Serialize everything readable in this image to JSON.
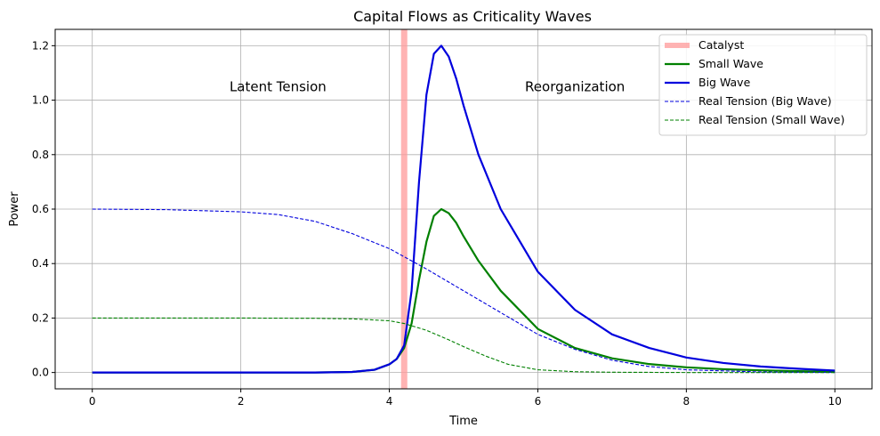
{
  "chart_data": {
    "type": "line",
    "title": "Capital Flows as Criticality Waves",
    "xlabel": "Time",
    "ylabel": "Power",
    "xlim": [
      -0.5,
      10.5
    ],
    "ylim": [
      -0.06,
      1.26
    ],
    "xticks": [
      0,
      2,
      4,
      6,
      8,
      10
    ],
    "xtick_labels": [
      "0",
      "2",
      "4",
      "6",
      "8",
      "10"
    ],
    "yticks": [
      0.0,
      0.2,
      0.4,
      0.6,
      0.8,
      1.0,
      1.2
    ],
    "ytick_labels": [
      "0.0",
      "0.2",
      "0.4",
      "0.6",
      "0.8",
      "1.0",
      "1.2"
    ],
    "grid": true,
    "legend_position": "top-right",
    "catalyst": {
      "name": "Catalyst",
      "x": 4.2,
      "color": "#ff9999"
    },
    "annotations": [
      {
        "text": "Latent Tension",
        "x": 2.5,
        "y": 1.05
      },
      {
        "text": "Reorganization",
        "x": 6.5,
        "y": 1.05
      }
    ],
    "series": [
      {
        "name": "Small Wave",
        "color": "#008000",
        "style": "solid",
        "x": [
          0,
          1,
          2,
          3,
          3.5,
          3.8,
          4.0,
          4.1,
          4.2,
          4.3,
          4.4,
          4.5,
          4.6,
          4.7,
          4.8,
          4.9,
          5.0,
          5.2,
          5.5,
          6.0,
          6.5,
          7.0,
          7.5,
          8.0,
          8.5,
          9.0,
          9.5,
          10.0
        ],
        "values": [
          0.0,
          0.0,
          0.0,
          0.0,
          0.002,
          0.01,
          0.03,
          0.05,
          0.09,
          0.18,
          0.34,
          0.48,
          0.575,
          0.6,
          0.585,
          0.55,
          0.5,
          0.41,
          0.3,
          0.16,
          0.09,
          0.052,
          0.031,
          0.019,
          0.012,
          0.008,
          0.005,
          0.003
        ]
      },
      {
        "name": "Big Wave",
        "color": "#0000dd",
        "style": "solid",
        "x": [
          0,
          1,
          2,
          3,
          3.5,
          3.8,
          4.0,
          4.1,
          4.2,
          4.3,
          4.4,
          4.5,
          4.6,
          4.7,
          4.8,
          4.9,
          5.0,
          5.2,
          5.5,
          6.0,
          6.5,
          7.0,
          7.5,
          8.0,
          8.5,
          9.0,
          9.5,
          10.0
        ],
        "values": [
          0.0,
          0.0,
          0.0,
          0.0,
          0.002,
          0.01,
          0.03,
          0.05,
          0.1,
          0.3,
          0.7,
          1.02,
          1.17,
          1.2,
          1.16,
          1.08,
          0.98,
          0.8,
          0.6,
          0.37,
          0.23,
          0.14,
          0.09,
          0.055,
          0.035,
          0.022,
          0.014,
          0.007
        ]
      },
      {
        "name": "Real Tension (Big Wave)",
        "color": "#0000dd",
        "style": "dashed",
        "x": [
          0,
          1,
          2,
          2.5,
          3,
          3.5,
          4.0,
          4.2,
          4.5,
          5.0,
          5.5,
          6.0,
          6.5,
          7.0,
          7.5,
          8.0,
          9.0,
          10.0
        ],
        "values": [
          0.6,
          0.598,
          0.59,
          0.58,
          0.555,
          0.51,
          0.455,
          0.425,
          0.38,
          0.3,
          0.22,
          0.14,
          0.085,
          0.045,
          0.022,
          0.01,
          0.002,
          0.0
        ]
      },
      {
        "name": "Real Tension (Small Wave)",
        "color": "#008000",
        "style": "dashed",
        "x": [
          0,
          1,
          2,
          3,
          3.5,
          4.0,
          4.2,
          4.5,
          4.8,
          5.0,
          5.3,
          5.6,
          6.0,
          6.5,
          7.0,
          8.0,
          10.0
        ],
        "values": [
          0.2,
          0.2,
          0.2,
          0.199,
          0.197,
          0.19,
          0.18,
          0.155,
          0.12,
          0.095,
          0.06,
          0.03,
          0.01,
          0.003,
          0.001,
          0.0,
          0.0
        ]
      }
    ]
  }
}
